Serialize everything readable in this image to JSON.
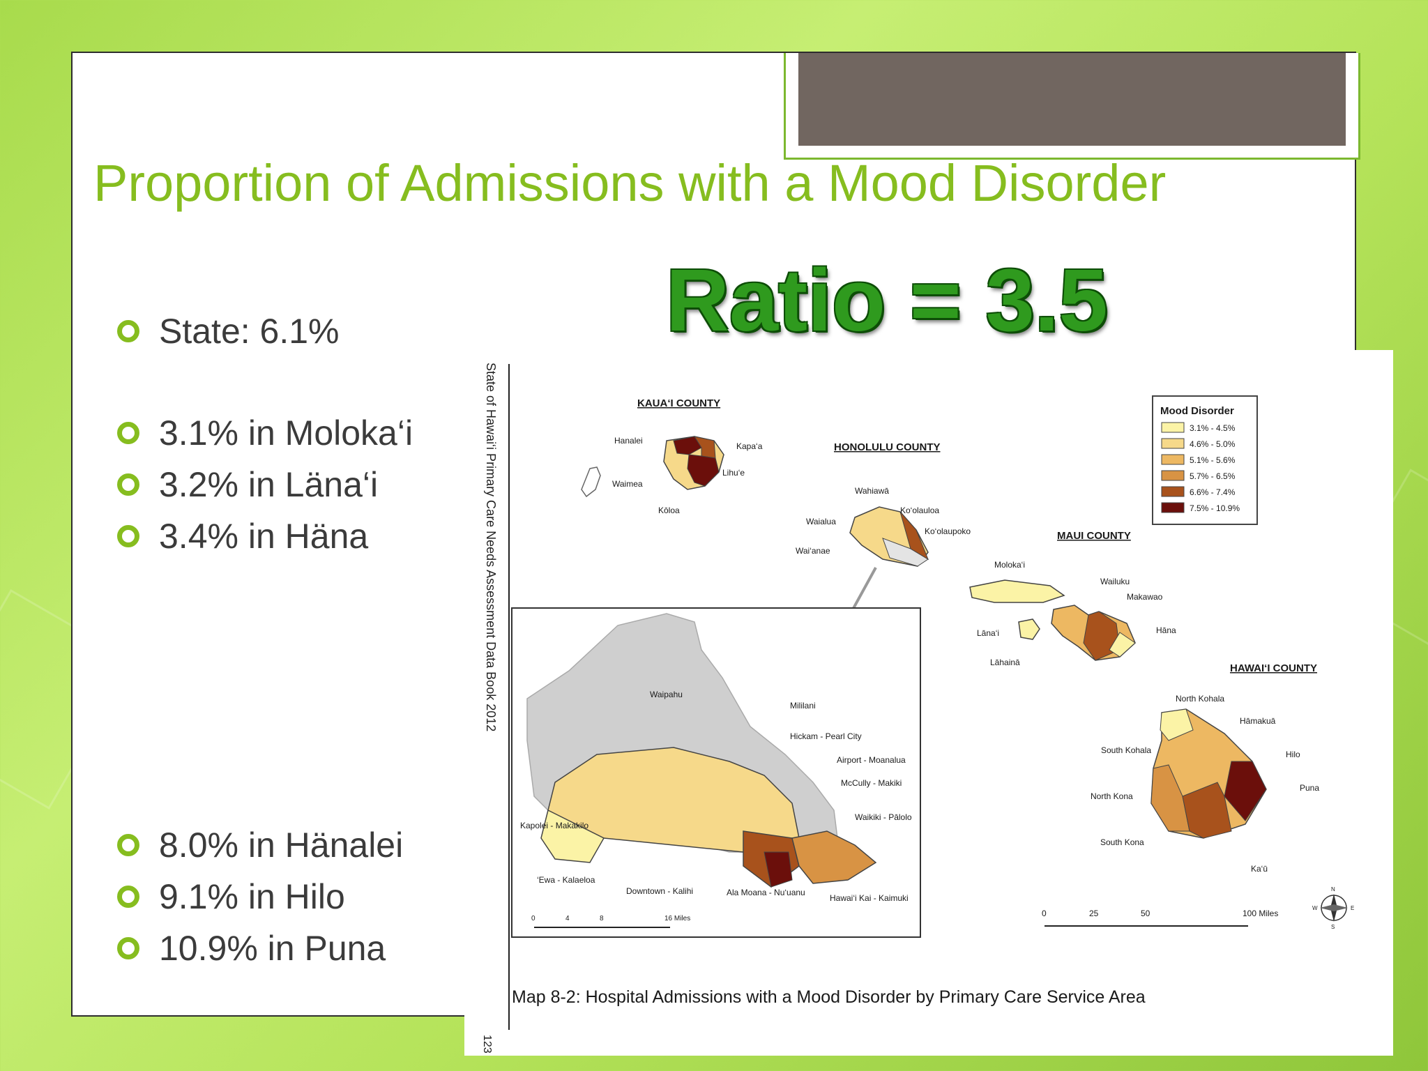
{
  "slide": {
    "title": "Proportion of Admissions with a Mood Disorder",
    "ratio_text": "Ratio = 3.5",
    "bullets_top": [
      "State: 6.1%"
    ],
    "bullets_low": [
      "3.1% in Moloka‘i",
      "3.2% in Läna‘i",
      "3.4% in Häna"
    ],
    "bullets_high": [
      "8.0% in Hänalei",
      "9.1% in Hilo",
      "10.9% in Puna"
    ]
  },
  "map": {
    "side_text": "State of Hawai‘i Primary Care Needs Assessment Data Book 2012",
    "page_number": "123",
    "caption": "Map 8-2: Hospital Admissions with a Mood Disorder by Primary Care Service Area",
    "counties": {
      "kauai": "KAUA‘I COUNTY",
      "honolulu": "HONOLULU COUNTY",
      "maui": "MAUI COUNTY",
      "hawaii": "HAWAI‘I COUNTY"
    },
    "legend": {
      "title": "Mood Disorder",
      "items": [
        {
          "label": "3.1% - 4.5%",
          "color": "#fbf3a6"
        },
        {
          "label": "4.6% - 5.0%",
          "color": "#f6d98a"
        },
        {
          "label": "5.1% - 5.6%",
          "color": "#edb862"
        },
        {
          "label": "5.7% - 6.5%",
          "color": "#d89344"
        },
        {
          "label": "6.6% - 7.4%",
          "color": "#a8521c"
        },
        {
          "label": "7.5% - 10.9%",
          "color": "#6b0f0b"
        }
      ]
    },
    "area_labels": {
      "kauai": [
        "Hanalei",
        "Kapa‘a",
        "Lihu‘e",
        "Waimea",
        "Kōloa"
      ],
      "oahu": [
        "Wahiawā",
        "Waialua",
        "Ko‘olauloa",
        "Ko‘olaupoko",
        "Wai‘anae"
      ],
      "maui": [
        "Moloka‘i",
        "Wailuku",
        "Makawao",
        "Lāna‘i",
        "Hāna",
        "Lāhainā"
      ],
      "hawaii": [
        "North Kohala",
        "Hāmakuā",
        "South Kohala",
        "Hilo",
        "Puna",
        "North Kona",
        "South Kona",
        "Ka‘ū"
      ],
      "honolulu_inset": [
        "Waipahu",
        "Mililani",
        "Hickam - Pearl City",
        "Airport - Moanalua",
        "McCully - Makiki",
        "Waikiki - Pālolo",
        "Kapolei - Makakilo",
        "‘Ewa - Kalaeloa",
        "Downtown - Kalihi",
        "Ala Moana - Nu‘uanu",
        "Hawai‘i Kai - Kaimuki"
      ]
    },
    "scale_inset": [
      "0",
      "4",
      "8",
      "16 Miles"
    ],
    "scale_main": [
      "0",
      "25",
      "50",
      "100 Miles"
    ],
    "compass": [
      "N",
      "S",
      "E",
      "W"
    ]
  }
}
